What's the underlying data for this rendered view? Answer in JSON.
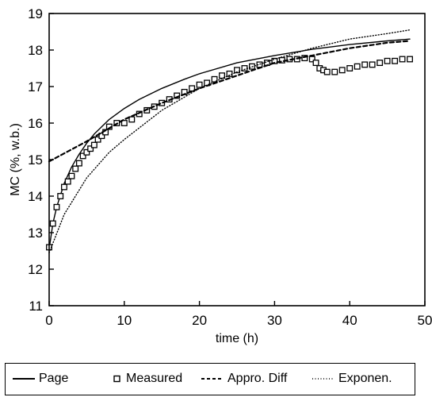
{
  "chart_data": {
    "type": "line",
    "xlabel": "time (h)",
    "ylabel": "MC (%, w.b.)",
    "xlim": [
      0,
      50
    ],
    "ylim": [
      11,
      19
    ],
    "x_ticks": [
      "0",
      "10",
      "20",
      "30",
      "40",
      "50"
    ],
    "y_ticks": [
      "11",
      "12",
      "13",
      "14",
      "15",
      "16",
      "17",
      "18",
      "19"
    ],
    "grid": false,
    "legend_position": "bottom",
    "series": [
      {
        "name": "Page",
        "style": "solid",
        "x": [
          0,
          0.5,
          1,
          2,
          3,
          4,
          5,
          6,
          8,
          10,
          12,
          15,
          18,
          20,
          25,
          30,
          35,
          40,
          45,
          48
        ],
        "values": [
          12.55,
          13.25,
          13.7,
          14.35,
          14.8,
          15.15,
          15.45,
          15.7,
          16.1,
          16.4,
          16.65,
          16.95,
          17.2,
          17.35,
          17.65,
          17.85,
          18.02,
          18.15,
          18.25,
          18.3
        ]
      },
      {
        "name": "Measured",
        "style": "markers",
        "x": [
          0,
          0.5,
          1,
          1.5,
          2,
          2.5,
          3,
          3.5,
          4,
          4.5,
          5,
          5.5,
          6,
          6.5,
          7,
          7.5,
          8,
          9,
          10,
          11,
          12,
          13,
          14,
          15,
          16,
          17,
          18,
          19,
          20,
          21,
          22,
          23,
          24,
          25,
          26,
          27,
          28,
          29,
          30,
          31,
          32,
          33,
          34,
          35,
          35.5,
          36,
          36.5,
          37,
          38,
          39,
          40,
          41,
          42,
          43,
          44,
          45,
          46,
          47,
          48
        ],
        "values": [
          12.6,
          13.25,
          13.7,
          14.0,
          14.25,
          14.4,
          14.55,
          14.75,
          14.9,
          15.1,
          15.2,
          15.3,
          15.4,
          15.55,
          15.65,
          15.75,
          15.9,
          16.0,
          16.0,
          16.1,
          16.25,
          16.35,
          16.45,
          16.55,
          16.65,
          16.75,
          16.85,
          16.95,
          17.05,
          17.1,
          17.2,
          17.3,
          17.35,
          17.45,
          17.5,
          17.55,
          17.6,
          17.65,
          17.7,
          17.72,
          17.75,
          17.75,
          17.78,
          17.75,
          17.65,
          17.5,
          17.45,
          17.4,
          17.4,
          17.45,
          17.5,
          17.55,
          17.6,
          17.6,
          17.65,
          17.7,
          17.7,
          17.75,
          17.75
        ]
      },
      {
        "name": "Appro. Diff",
        "style": "dashed",
        "x": [
          0,
          5,
          10,
          15,
          20,
          25,
          30,
          35,
          40,
          45,
          48
        ],
        "values": [
          14.95,
          15.5,
          16.1,
          16.55,
          16.95,
          17.3,
          17.65,
          17.85,
          18.05,
          18.2,
          18.25
        ]
      },
      {
        "name": "Exponen.",
        "style": "dotted",
        "x": [
          0,
          2,
          5,
          8,
          10,
          15,
          20,
          25,
          30,
          35,
          40,
          45,
          48
        ],
        "values": [
          12.45,
          13.5,
          14.5,
          15.2,
          15.55,
          16.35,
          16.95,
          17.4,
          17.75,
          18.05,
          18.3,
          18.45,
          18.55
        ]
      }
    ]
  }
}
